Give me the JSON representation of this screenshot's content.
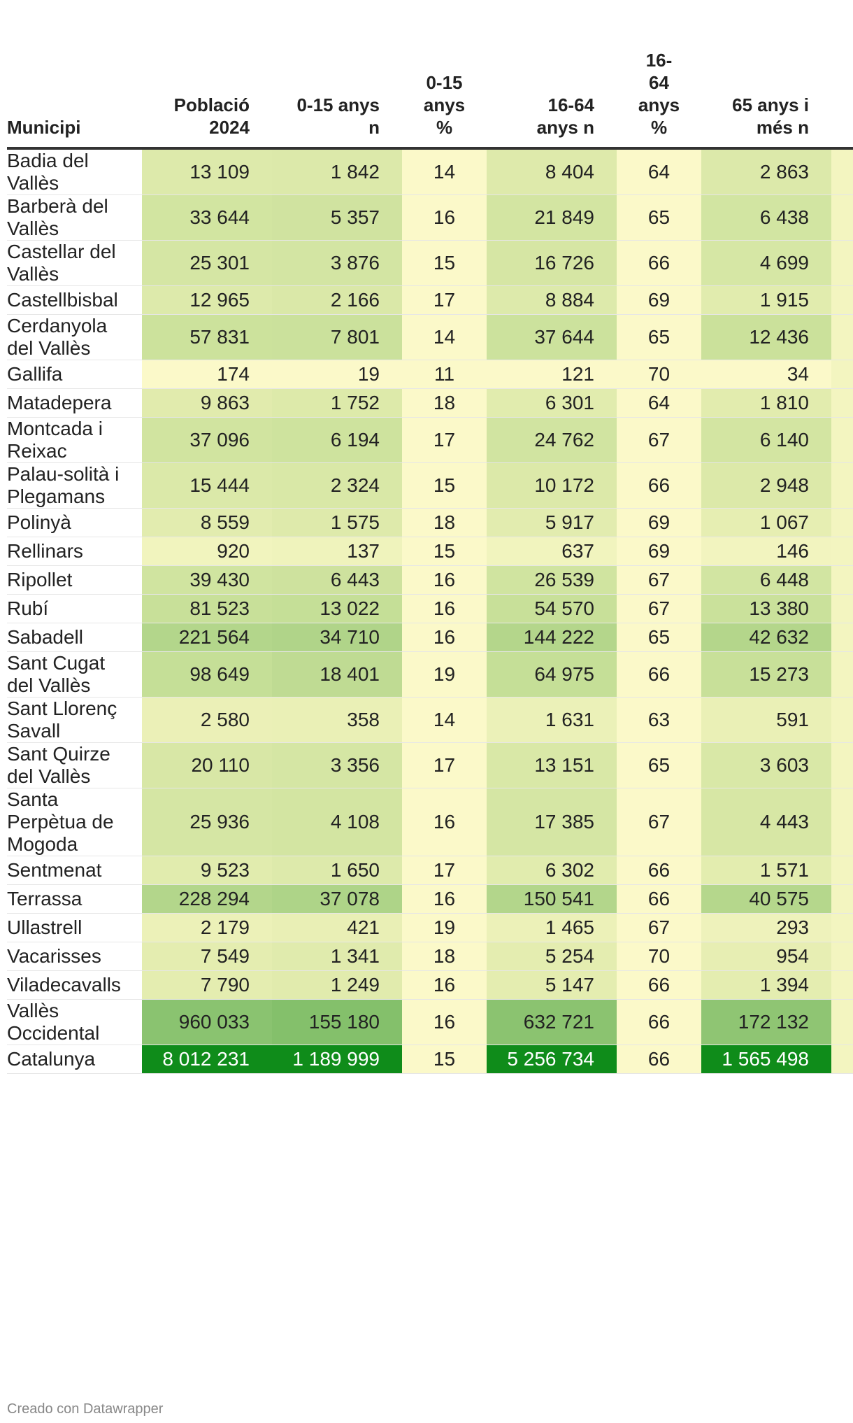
{
  "chart_data": {
    "type": "table",
    "columns": [
      "Municipi",
      "Població 2024",
      "0-15 anys n",
      "0-15 anys %",
      "16-64 anys n",
      "16-64 anys %",
      "65 anys i més n"
    ],
    "header_lines": [
      [
        "Municipi"
      ],
      [
        "Població",
        "2024"
      ],
      [
        "0-15 anys",
        "n"
      ],
      [
        "0-15",
        "anys",
        "%"
      ],
      [
        "16-64",
        "anys n"
      ],
      [
        "16-",
        "64",
        "anys",
        "%"
      ],
      [
        "65 anys i",
        "més n"
      ]
    ],
    "rows": [
      {
        "name": "Badia del Vallès",
        "name_lines": [
          "Badia del",
          "Vallès"
        ],
        "poblacio": "13 109",
        "n015": "1 842",
        "p015": "14",
        "n1664": "8 404",
        "p1664": "64",
        "n65": "2 863"
      },
      {
        "name": "Barberà del Vallès",
        "name_lines": [
          "Barberà del",
          "Vallès"
        ],
        "poblacio": "33 644",
        "n015": "5 357",
        "p015": "16",
        "n1664": "21 849",
        "p1664": "65",
        "n65": "6 438"
      },
      {
        "name": "Castellar del Vallès",
        "name_lines": [
          "Castellar del",
          "Vallès"
        ],
        "poblacio": "25 301",
        "n015": "3 876",
        "p015": "15",
        "n1664": "16 726",
        "p1664": "66",
        "n65": "4 699"
      },
      {
        "name": "Castellbisbal",
        "name_lines": [
          "Castellbisbal"
        ],
        "poblacio": "12 965",
        "n015": "2 166",
        "p015": "17",
        "n1664": "8 884",
        "p1664": "69",
        "n65": "1 915"
      },
      {
        "name": "Cerdanyola del Vallès",
        "name_lines": [
          "Cerdanyola",
          "del Vallès"
        ],
        "poblacio": "57 831",
        "n015": "7 801",
        "p015": "14",
        "n1664": "37 644",
        "p1664": "65",
        "n65": "12 436"
      },
      {
        "name": "Gallifa",
        "name_lines": [
          "Gallifa"
        ],
        "poblacio": "174",
        "n015": "19",
        "p015": "11",
        "n1664": "121",
        "p1664": "70",
        "n65": "34"
      },
      {
        "name": "Matadepera",
        "name_lines": [
          "Matadepera"
        ],
        "poblacio": "9 863",
        "n015": "1 752",
        "p015": "18",
        "n1664": "6 301",
        "p1664": "64",
        "n65": "1 810"
      },
      {
        "name": "Montcada i Reixac",
        "name_lines": [
          "Montcada i",
          "Reixac"
        ],
        "poblacio": "37 096",
        "n015": "6 194",
        "p015": "17",
        "n1664": "24 762",
        "p1664": "67",
        "n65": "6 140"
      },
      {
        "name": "Palau-solità i Plegamans",
        "name_lines": [
          "Palau-solità i",
          "Plegamans"
        ],
        "poblacio": "15 444",
        "n015": "2 324",
        "p015": "15",
        "n1664": "10 172",
        "p1664": "66",
        "n65": "2 948"
      },
      {
        "name": "Polinyà",
        "name_lines": [
          "Polinyà"
        ],
        "poblacio": "8 559",
        "n015": "1 575",
        "p015": "18",
        "n1664": "5 917",
        "p1664": "69",
        "n65": "1 067"
      },
      {
        "name": "Rellinars",
        "name_lines": [
          "Rellinars"
        ],
        "poblacio": "920",
        "n015": "137",
        "p015": "15",
        "n1664": "637",
        "p1664": "69",
        "n65": "146"
      },
      {
        "name": "Ripollet",
        "name_lines": [
          "Ripollet"
        ],
        "poblacio": "39 430",
        "n015": "6 443",
        "p015": "16",
        "n1664": "26 539",
        "p1664": "67",
        "n65": "6 448"
      },
      {
        "name": "Rubí",
        "name_lines": [
          "Rubí"
        ],
        "poblacio": "81 523",
        "n015": "13 022",
        "p015": "16",
        "n1664": "54 570",
        "p1664": "67",
        "n65": "13 380"
      },
      {
        "name": "Sabadell",
        "name_lines": [
          "Sabadell"
        ],
        "poblacio": "221 564",
        "n015": "34 710",
        "p015": "16",
        "n1664": "144 222",
        "p1664": "65",
        "n65": "42 632"
      },
      {
        "name": "Sant Cugat del Vallès",
        "name_lines": [
          "Sant Cugat",
          "del Vallès"
        ],
        "poblacio": "98 649",
        "n015": "18 401",
        "p015": "19",
        "n1664": "64 975",
        "p1664": "66",
        "n65": "15 273"
      },
      {
        "name": "Sant Llorenç Savall",
        "name_lines": [
          "Sant Llorenç",
          "Savall"
        ],
        "poblacio": "2 580",
        "n015": "358",
        "p015": "14",
        "n1664": "1 631",
        "p1664": "63",
        "n65": "591"
      },
      {
        "name": "Sant Quirze del Vallès",
        "name_lines": [
          "Sant Quirze",
          "del Vallès"
        ],
        "poblacio": "20 110",
        "n015": "3 356",
        "p015": "17",
        "n1664": "13 151",
        "p1664": "65",
        "n65": "3 603"
      },
      {
        "name": "Santa Perpètua de Mogoda",
        "name_lines": [
          "Santa",
          "Perpètua de",
          "Mogoda"
        ],
        "poblacio": "25 936",
        "n015": "4 108",
        "p015": "16",
        "n1664": "17 385",
        "p1664": "67",
        "n65": "4 443"
      },
      {
        "name": "Sentmenat",
        "name_lines": [
          "Sentmenat"
        ],
        "poblacio": "9 523",
        "n015": "1 650",
        "p015": "17",
        "n1664": "6 302",
        "p1664": "66",
        "n65": "1 571"
      },
      {
        "name": "Terrassa",
        "name_lines": [
          "Terrassa"
        ],
        "poblacio": "228 294",
        "n015": "37 078",
        "p015": "16",
        "n1664": "150 541",
        "p1664": "66",
        "n65": "40 575"
      },
      {
        "name": "Ullastrell",
        "name_lines": [
          "Ullastrell"
        ],
        "poblacio": "2 179",
        "n015": "421",
        "p015": "19",
        "n1664": "1 465",
        "p1664": "67",
        "n65": "293"
      },
      {
        "name": "Vacarisses",
        "name_lines": [
          "Vacarisses"
        ],
        "poblacio": "7 549",
        "n015": "1 341",
        "p015": "18",
        "n1664": "5 254",
        "p1664": "70",
        "n65": "954"
      },
      {
        "name": "Viladecavalls",
        "name_lines": [
          "Viladecavalls"
        ],
        "poblacio": "7 790",
        "n015": "1 249",
        "p015": "16",
        "n1664": "5 147",
        "p1664": "66",
        "n65": "1 394"
      },
      {
        "name": "Vallès Occidental",
        "name_lines": [
          "Vallès",
          "Occidental"
        ],
        "poblacio": "960 033",
        "n015": "155 180",
        "p015": "16",
        "n1664": "632 721",
        "p1664": "66",
        "n65": "172 132"
      },
      {
        "name": "Catalunya",
        "name_lines": [
          "Catalunya"
        ],
        "poblacio": "8 012 231",
        "n015": "1 189 999",
        "p015": "15",
        "n1664": "5 256 734",
        "p1664": "66",
        "n65": "1 565 498"
      }
    ],
    "color_scale": {
      "min_color": "#fbf9c9",
      "max_color": "#0f8c1a",
      "percent_column_color": "#fbf9c9"
    }
  },
  "footer": {
    "credit": "Creado con Datawrapper"
  }
}
